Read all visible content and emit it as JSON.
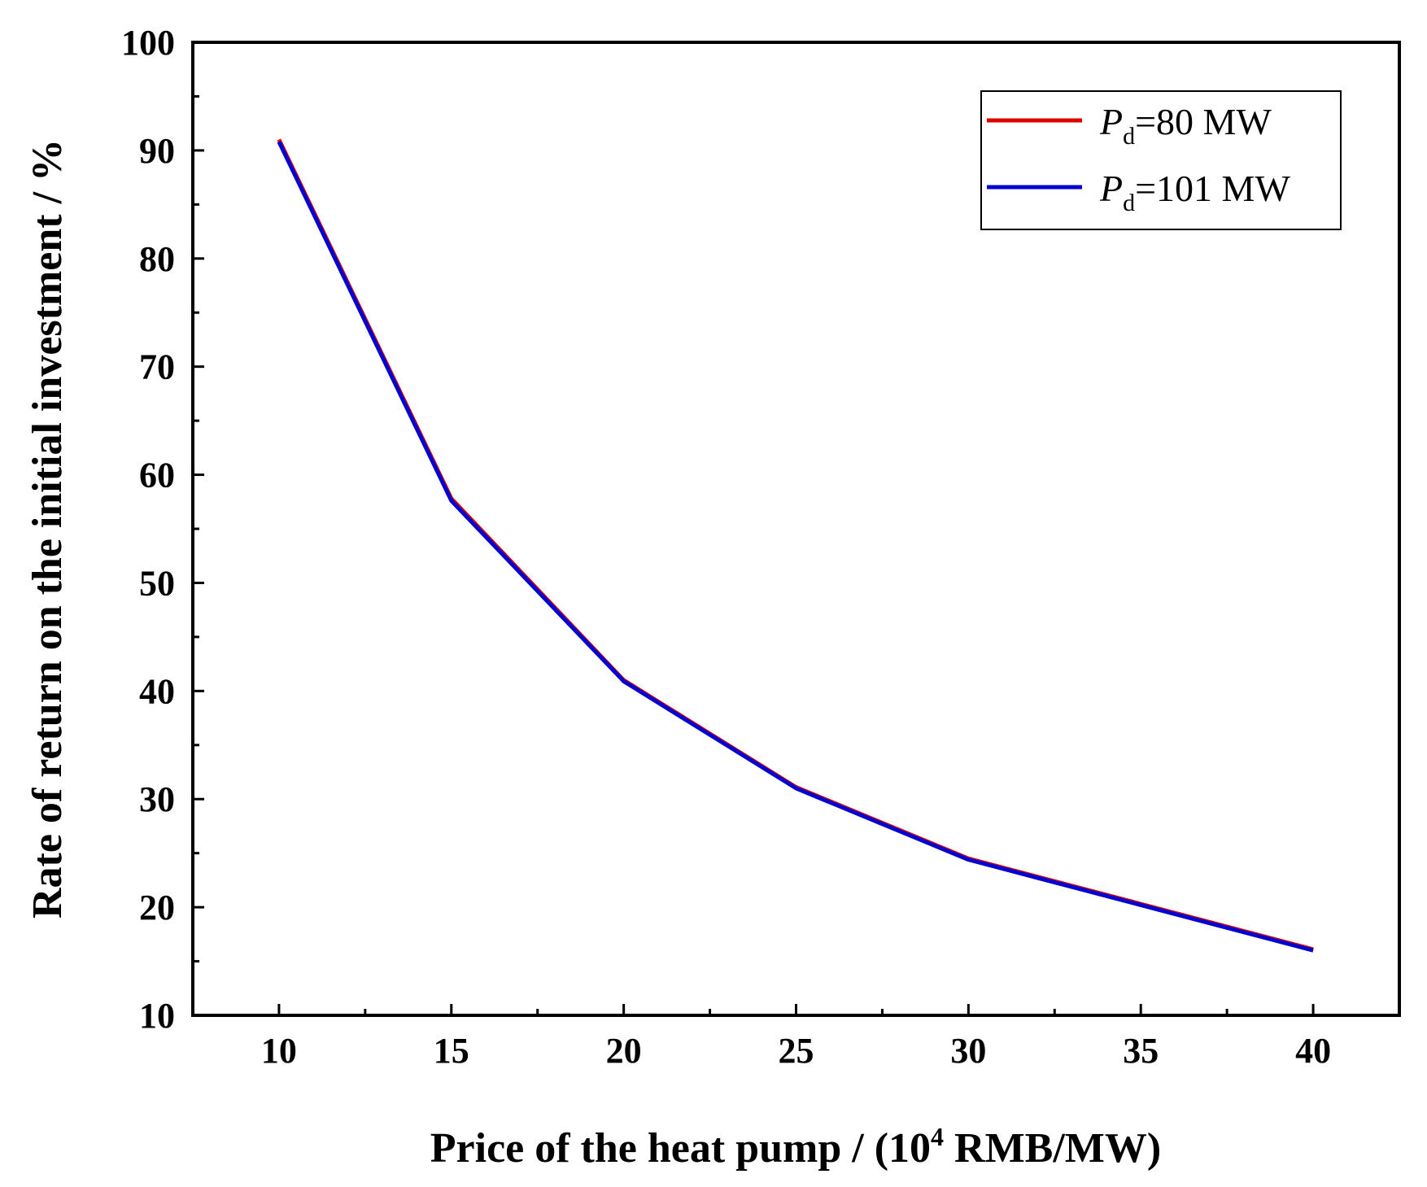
{
  "chart_data": {
    "type": "line",
    "xlabel": "Price of the heat pump / (10",
    "xlabel_sup": "4",
    "xlabel_suffix": "  RMB/MW)",
    "ylabel": "Rate of return on the initial investment / %",
    "xlim": [
      7.5,
      42.5
    ],
    "ylim": [
      10,
      100
    ],
    "xticks": [
      10,
      15,
      20,
      25,
      30,
      35,
      40
    ],
    "yticks": [
      10,
      20,
      30,
      40,
      50,
      60,
      70,
      80,
      90,
      100
    ],
    "grid": false,
    "legend_position": "top-right",
    "x": [
      10,
      15,
      20,
      25,
      30,
      35,
      40
    ],
    "series": [
      {
        "name_main": "P",
        "name_sub": "d",
        "name_rest": "=80 MW",
        "color": "#e00000",
        "values": [
          91.0,
          57.8,
          41.0,
          31.1,
          24.5,
          20.3,
          16.1
        ]
      },
      {
        "name_main": "P",
        "name_sub": "d",
        "name_rest": "=101 MW",
        "color": "#0000d0",
        "values": [
          90.8,
          57.6,
          40.9,
          31.0,
          24.4,
          20.2,
          16.0
        ]
      }
    ]
  }
}
